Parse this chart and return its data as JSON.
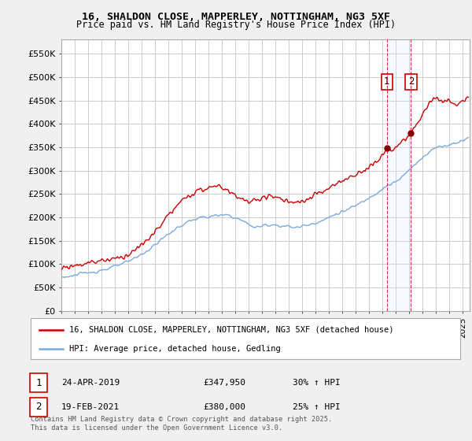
{
  "title_line1": "16, SHALDON CLOSE, MAPPERLEY, NOTTINGHAM, NG3 5XF",
  "title_line2": "Price paid vs. HM Land Registry's House Price Index (HPI)",
  "bg_color": "#f0f0f0",
  "plot_bg_color": "#ffffff",
  "grid_color": "#cccccc",
  "line1_color": "#cc0000",
  "line2_color": "#7aaadd",
  "vline_color": "#cc0000",
  "shade_color": "#ddeeff",
  "ylim": [
    0,
    580000
  ],
  "yticks": [
    0,
    50000,
    100000,
    150000,
    200000,
    250000,
    300000,
    350000,
    400000,
    450000,
    500000,
    550000
  ],
  "ytick_labels": [
    "£0",
    "£50K",
    "£100K",
    "£150K",
    "£200K",
    "£250K",
    "£300K",
    "£350K",
    "£400K",
    "£450K",
    "£500K",
    "£550K"
  ],
  "legend1_label": "16, SHALDON CLOSE, MAPPERLEY, NOTTINGHAM, NG3 5XF (detached house)",
  "legend2_label": "HPI: Average price, detached house, Gedling",
  "transaction1_num": "1",
  "transaction1_date": "24-APR-2019",
  "transaction1_price": "£347,950",
  "transaction1_hpi": "30% ↑ HPI",
  "transaction2_num": "2",
  "transaction2_date": "19-FEB-2021",
  "transaction2_price": "£380,000",
  "transaction2_hpi": "25% ↑ HPI",
  "footnote": "Contains HM Land Registry data © Crown copyright and database right 2025.\nThis data is licensed under the Open Government Licence v3.0.",
  "vline1_x": 2019.32,
  "vline2_x": 2021.12,
  "marker1_x": 2019.32,
  "marker1_y": 347950,
  "marker2_x": 2021.12,
  "marker2_y": 380000,
  "xmin": 1995,
  "xmax": 2025.5
}
